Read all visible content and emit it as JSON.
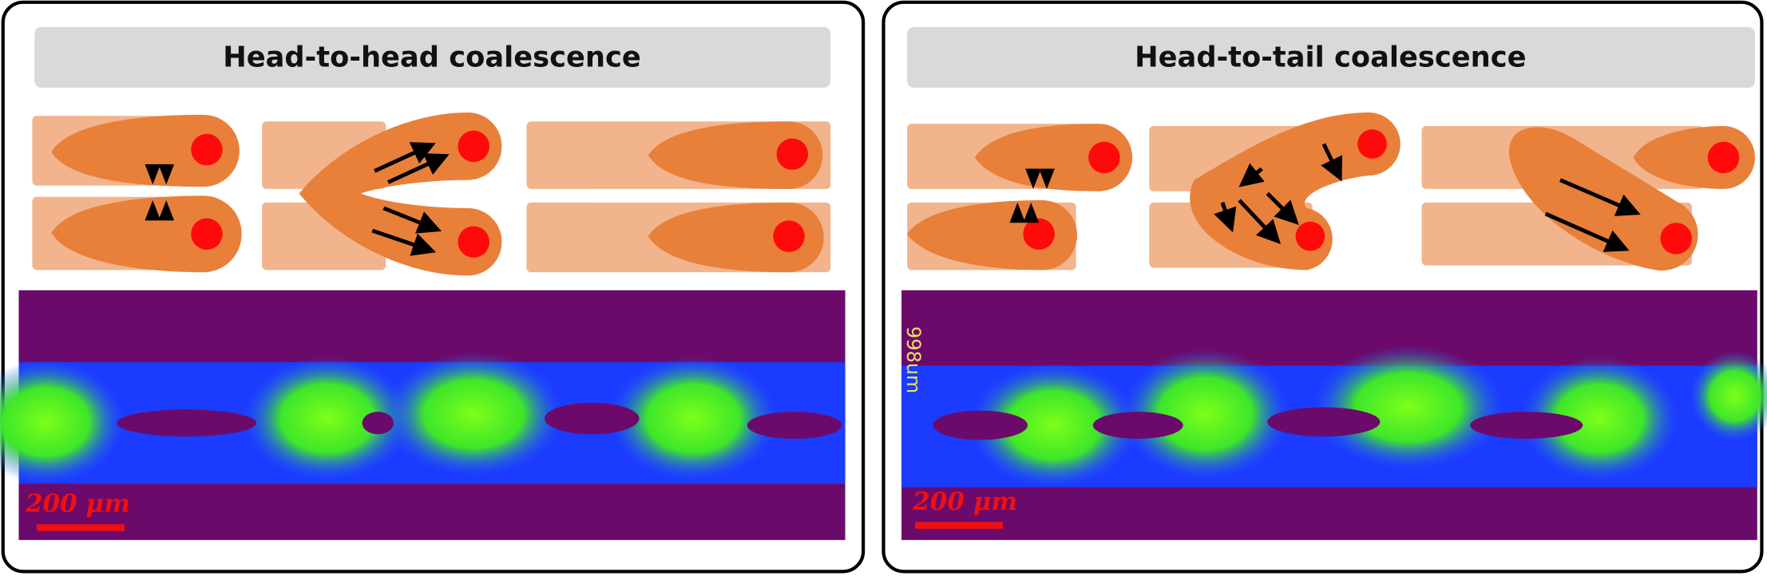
{
  "panels": [
    {
      "title": "Head-to-head coalescence",
      "scale_bar": "200 μm"
    },
    {
      "title": "Head-to-tail coalescence",
      "scale_bar": "200 μm",
      "side_label": "998um"
    }
  ]
}
